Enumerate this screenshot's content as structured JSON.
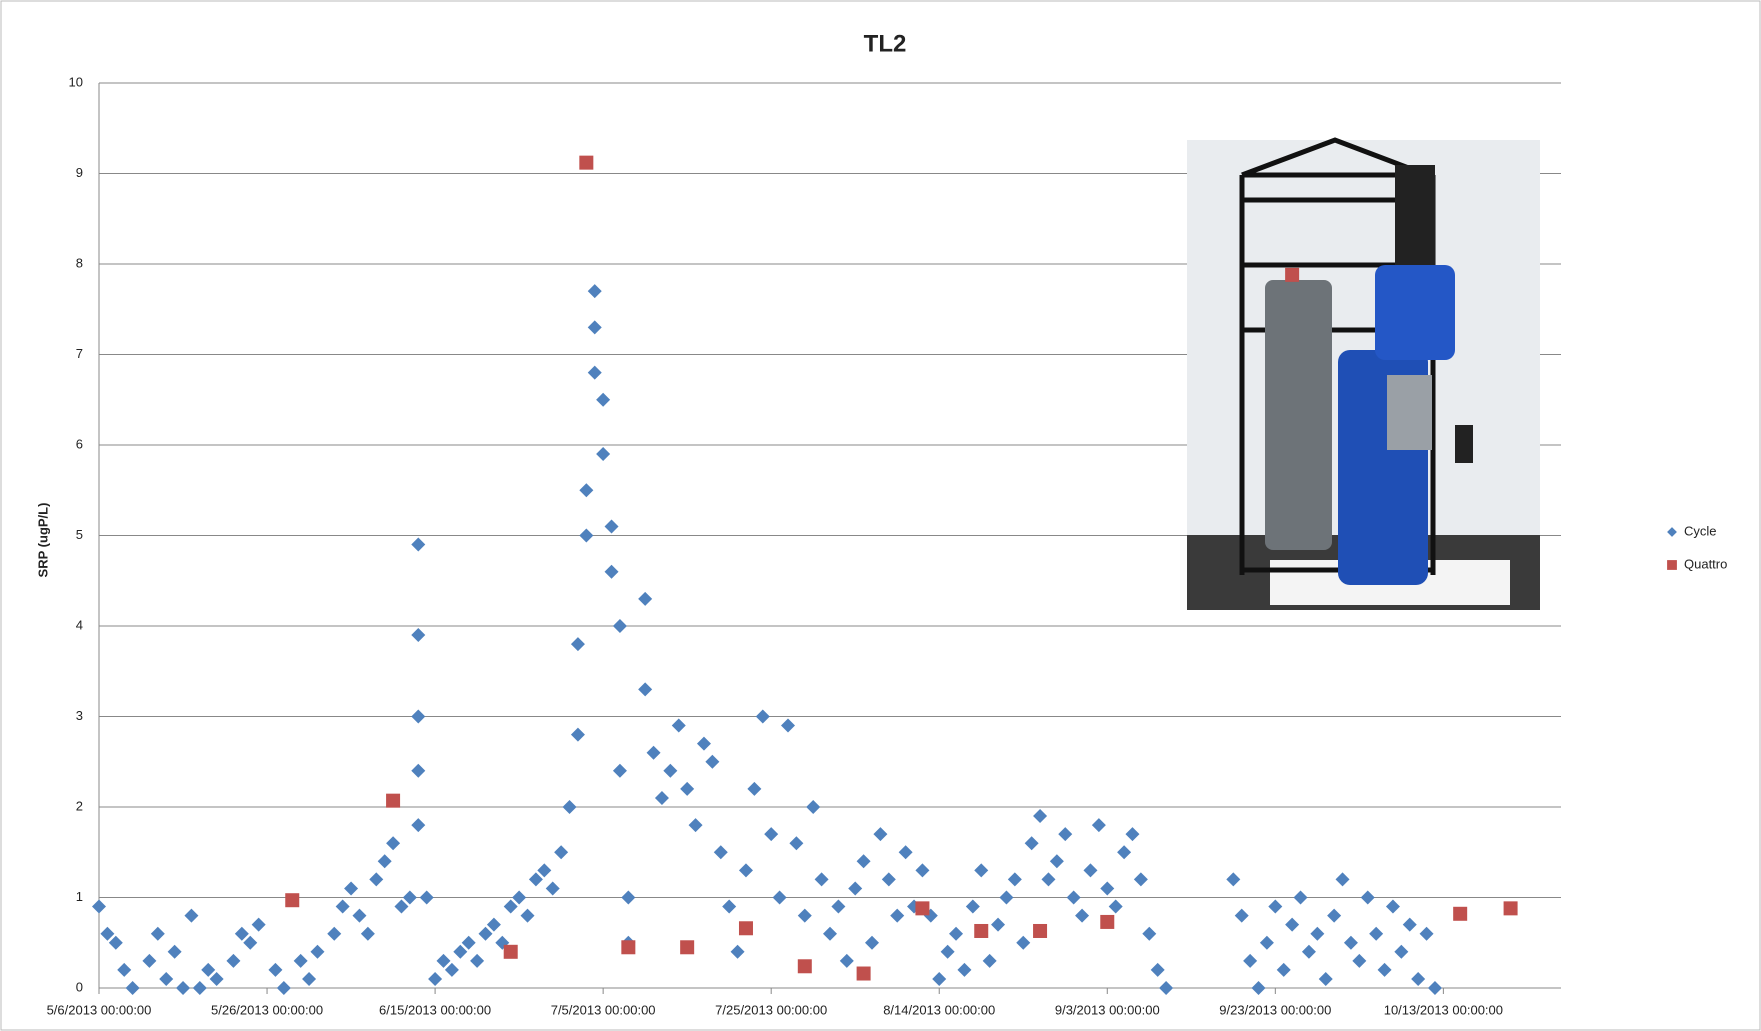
{
  "chart_data": {
    "type": "scatter",
    "title": "TL2",
    "y_label": "SRP (ugP/L)",
    "xlim": [
      "2013-05-06",
      "2013-10-27"
    ],
    "xticks": [
      {
        "value": "2013-05-06",
        "label": "5/6/2013 00:00:00"
      },
      {
        "value": "2013-05-26",
        "label": "5/26/2013 00:00:00"
      },
      {
        "value": "2013-06-15",
        "label": "6/15/2013 00:00:00"
      },
      {
        "value": "2013-07-05",
        "label": "7/5/2013 00:00:00"
      },
      {
        "value": "2013-07-25",
        "label": "7/25/2013 00:00:00"
      },
      {
        "value": "2013-08-14",
        "label": "8/14/2013 00:00:00"
      },
      {
        "value": "2013-09-03",
        "label": "9/3/2013 00:00:00"
      },
      {
        "value": "2013-09-23",
        "label": "9/23/2013 00:00:00"
      },
      {
        "value": "2013-10-13",
        "label": "10/13/2013 00:00:00"
      }
    ],
    "ylim": [
      0,
      10
    ],
    "yticks": [
      0,
      1,
      2,
      3,
      4,
      5,
      6,
      7,
      8,
      9,
      10
    ],
    "grid": true,
    "legend": "right",
    "series": [
      {
        "name": "Cycle",
        "color": "#4f81bd",
        "marker": "diamond",
        "x": [
          "2013-05-06",
          "2013-05-07",
          "2013-05-08",
          "2013-05-09",
          "2013-05-10",
          "2013-05-12",
          "2013-05-13",
          "2013-05-14",
          "2013-05-15",
          "2013-05-16",
          "2013-05-17",
          "2013-05-18",
          "2013-05-19",
          "2013-05-20",
          "2013-05-22",
          "2013-05-23",
          "2013-05-24",
          "2013-05-25",
          "2013-05-27",
          "2013-05-28",
          "2013-05-30",
          "2013-05-31",
          "2013-06-01",
          "2013-06-03",
          "2013-06-04",
          "2013-06-05",
          "2013-06-06",
          "2013-06-07",
          "2013-06-08",
          "2013-06-09",
          "2013-06-10",
          "2013-06-11",
          "2013-06-12",
          "2013-06-13",
          "2013-06-13",
          "2013-06-13",
          "2013-06-13",
          "2013-06-13",
          "2013-06-14",
          "2013-06-15",
          "2013-06-16",
          "2013-06-17",
          "2013-06-18",
          "2013-06-19",
          "2013-06-20",
          "2013-06-21",
          "2013-06-22",
          "2013-06-23",
          "2013-06-24",
          "2013-06-25",
          "2013-06-26",
          "2013-06-27",
          "2013-06-28",
          "2013-06-29",
          "2013-06-30",
          "2013-07-01",
          "2013-07-02",
          "2013-07-02",
          "2013-07-03",
          "2013-07-03",
          "2013-07-04",
          "2013-07-04",
          "2013-07-04",
          "2013-07-05",
          "2013-07-05",
          "2013-07-06",
          "2013-07-06",
          "2013-07-07",
          "2013-07-07",
          "2013-07-08",
          "2013-07-08",
          "2013-07-10",
          "2013-07-10",
          "2013-07-11",
          "2013-07-12",
          "2013-07-13",
          "2013-07-14",
          "2013-07-15",
          "2013-07-16",
          "2013-07-17",
          "2013-07-18",
          "2013-07-19",
          "2013-07-20",
          "2013-07-21",
          "2013-07-22",
          "2013-07-23",
          "2013-07-24",
          "2013-07-25",
          "2013-07-26",
          "2013-07-27",
          "2013-07-28",
          "2013-07-29",
          "2013-07-30",
          "2013-07-31",
          "2013-08-01",
          "2013-08-02",
          "2013-08-03",
          "2013-08-04",
          "2013-08-05",
          "2013-08-06",
          "2013-08-07",
          "2013-08-08",
          "2013-08-09",
          "2013-08-10",
          "2013-08-11",
          "2013-08-12",
          "2013-08-13",
          "2013-08-14",
          "2013-08-15",
          "2013-08-16",
          "2013-08-17",
          "2013-08-18",
          "2013-08-19",
          "2013-08-20",
          "2013-08-21",
          "2013-08-22",
          "2013-08-23",
          "2013-08-24",
          "2013-08-25",
          "2013-08-26",
          "2013-08-27",
          "2013-08-28",
          "2013-08-29",
          "2013-08-30",
          "2013-08-31",
          "2013-09-01",
          "2013-09-02",
          "2013-09-03",
          "2013-09-04",
          "2013-09-05",
          "2013-09-06",
          "2013-09-07",
          "2013-09-08",
          "2013-09-09",
          "2013-09-10",
          "2013-09-18",
          "2013-09-19",
          "2013-09-20",
          "2013-09-21",
          "2013-09-22",
          "2013-09-23",
          "2013-09-24",
          "2013-09-25",
          "2013-09-26",
          "2013-09-27",
          "2013-09-28",
          "2013-09-29",
          "2013-09-30",
          "2013-10-01",
          "2013-10-02",
          "2013-10-03",
          "2013-10-04",
          "2013-10-05",
          "2013-10-06",
          "2013-10-07",
          "2013-10-08",
          "2013-10-09",
          "2013-10-10",
          "2013-10-11",
          "2013-10-12"
        ],
        "values": [
          0.9,
          0.6,
          0.5,
          0.2,
          0.0,
          0.3,
          0.6,
          0.1,
          0.4,
          0.0,
          0.8,
          0.0,
          0.2,
          0.1,
          0.3,
          0.6,
          0.5,
          0.7,
          0.2,
          0.0,
          0.3,
          0.1,
          0.4,
          0.6,
          0.9,
          1.1,
          0.8,
          0.6,
          1.2,
          1.4,
          1.6,
          0.9,
          1.0,
          4.9,
          3.9,
          3.0,
          2.4,
          1.8,
          1.0,
          0.1,
          0.3,
          0.2,
          0.4,
          0.5,
          0.3,
          0.6,
          0.7,
          0.5,
          0.9,
          1.0,
          0.8,
          1.2,
          1.3,
          1.1,
          1.5,
          2.0,
          2.8,
          3.8,
          5.0,
          5.5,
          6.8,
          7.7,
          7.3,
          6.5,
          5.9,
          5.1,
          4.6,
          4.0,
          2.4,
          1.0,
          0.5,
          4.3,
          3.3,
          2.6,
          2.1,
          2.4,
          2.9,
          2.2,
          1.8,
          2.7,
          2.5,
          1.5,
          0.9,
          0.4,
          1.3,
          2.2,
          3.0,
          1.7,
          1.0,
          2.9,
          1.6,
          0.8,
          2.0,
          1.2,
          0.6,
          0.9,
          0.3,
          1.1,
          1.4,
          0.5,
          1.7,
          1.2,
          0.8,
          1.5,
          0.9,
          1.3,
          0.8,
          0.1,
          0.4,
          0.6,
          0.2,
          0.9,
          1.3,
          0.3,
          0.7,
          1.0,
          1.2,
          0.5,
          1.6,
          1.9,
          1.2,
          1.4,
          1.7,
          1.0,
          0.8,
          1.3,
          1.8,
          1.1,
          0.9,
          1.5,
          1.7,
          1.2,
          0.6,
          0.2,
          0.0,
          1.2,
          0.8,
          0.3,
          0.0,
          0.5,
          0.9,
          0.2,
          0.7,
          1.0,
          0.4,
          0.6,
          0.1,
          0.8,
          1.2,
          0.5,
          0.3,
          1.0,
          0.6,
          0.2,
          0.9,
          0.4,
          0.7,
          0.1,
          0.6,
          0.0
        ]
      },
      {
        "name": "Quattro",
        "color": "#c0504d",
        "marker": "square",
        "x": [
          "2013-05-29",
          "2013-06-10",
          "2013-06-24",
          "2013-07-03",
          "2013-07-08",
          "2013-07-15",
          "2013-07-22",
          "2013-07-29",
          "2013-08-05",
          "2013-08-12",
          "2013-08-19",
          "2013-08-26",
          "2013-09-03",
          "2013-09-25",
          "2013-10-15",
          "2013-10-21"
        ],
        "values": [
          0.97,
          2.07,
          0.4,
          9.12,
          0.45,
          0.45,
          0.66,
          0.24,
          0.16,
          0.88,
          0.63,
          0.63,
          0.73,
          7.88,
          0.82,
          0.88
        ]
      }
    ]
  }
}
